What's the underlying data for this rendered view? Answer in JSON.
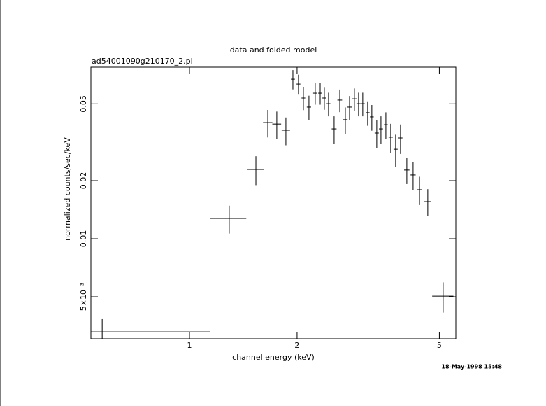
{
  "chart_data": {
    "type": "scatter",
    "title": "data and folded model",
    "subtitle": "ad54001090g210170_2.pi",
    "xlabel": "channel energy (keV)",
    "ylabel": "normalized counts/sec/keV",
    "timestamp": "18-May-1998 15:48",
    "xscale": "log",
    "yscale": "log",
    "color": "#000000",
    "xlim": [
      0.53,
      5.56
    ],
    "ylim": [
      0.00303,
      0.0774
    ],
    "xticks": [
      1,
      2,
      5
    ],
    "yticks": [
      {
        "value": 0.005,
        "label": "5×10⁻³"
      },
      0.01,
      0.02,
      0.05
    ],
    "x": [
      0.57,
      1.292,
      1.534,
      1.656,
      1.755,
      1.861,
      1.947,
      2.018,
      2.083,
      2.159,
      2.248,
      2.321,
      2.384,
      2.449,
      2.539,
      2.633,
      2.729,
      2.804,
      2.893,
      2.972,
      3.053,
      3.151,
      3.237,
      3.341,
      3.433,
      3.543,
      3.656,
      3.773,
      3.894,
      4.055,
      4.223,
      4.4,
      4.641,
      5.124
    ],
    "xerr": [
      0.57,
      0.15,
      0.085,
      0.05,
      0.05,
      0.05,
      0.025,
      0.025,
      0.025,
      0.03,
      0.03,
      0.03,
      0.03,
      0.03,
      0.04,
      0.04,
      0.04,
      0.04,
      0.04,
      0.04,
      0.04,
      0.04,
      0.04,
      0.045,
      0.045,
      0.045,
      0.05,
      0.05,
      0.05,
      0.07,
      0.07,
      0.07,
      0.1,
      0.35
    ],
    "values": [
      0.00329,
      0.01274,
      0.02286,
      0.04,
      0.0393,
      0.0365,
      0.0671,
      0.0633,
      0.0536,
      0.0481,
      0.0568,
      0.0568,
      0.0536,
      0.0501,
      0.0371,
      0.0523,
      0.0414,
      0.0481,
      0.0531,
      0.0501,
      0.0501,
      0.045,
      0.0428,
      0.0353,
      0.0371,
      0.039,
      0.0336,
      0.0291,
      0.0333,
      0.0227,
      0.0214,
      0.01795,
      0.01557,
      0.00504
    ],
    "yerr": [
      0.00054,
      0.0021,
      0.0039,
      0.0065,
      0.0063,
      0.006,
      0.0077,
      0.0075,
      0.0072,
      0.007,
      0.0073,
      0.0073,
      0.007,
      0.007,
      0.006,
      0.007,
      0.0065,
      0.0068,
      0.007,
      0.007,
      0.007,
      0.0065,
      0.0065,
      0.0058,
      0.006,
      0.0062,
      0.0058,
      0.0055,
      0.0058,
      0.0035,
      0.0035,
      0.003,
      0.0025,
      0.0009
    ]
  }
}
